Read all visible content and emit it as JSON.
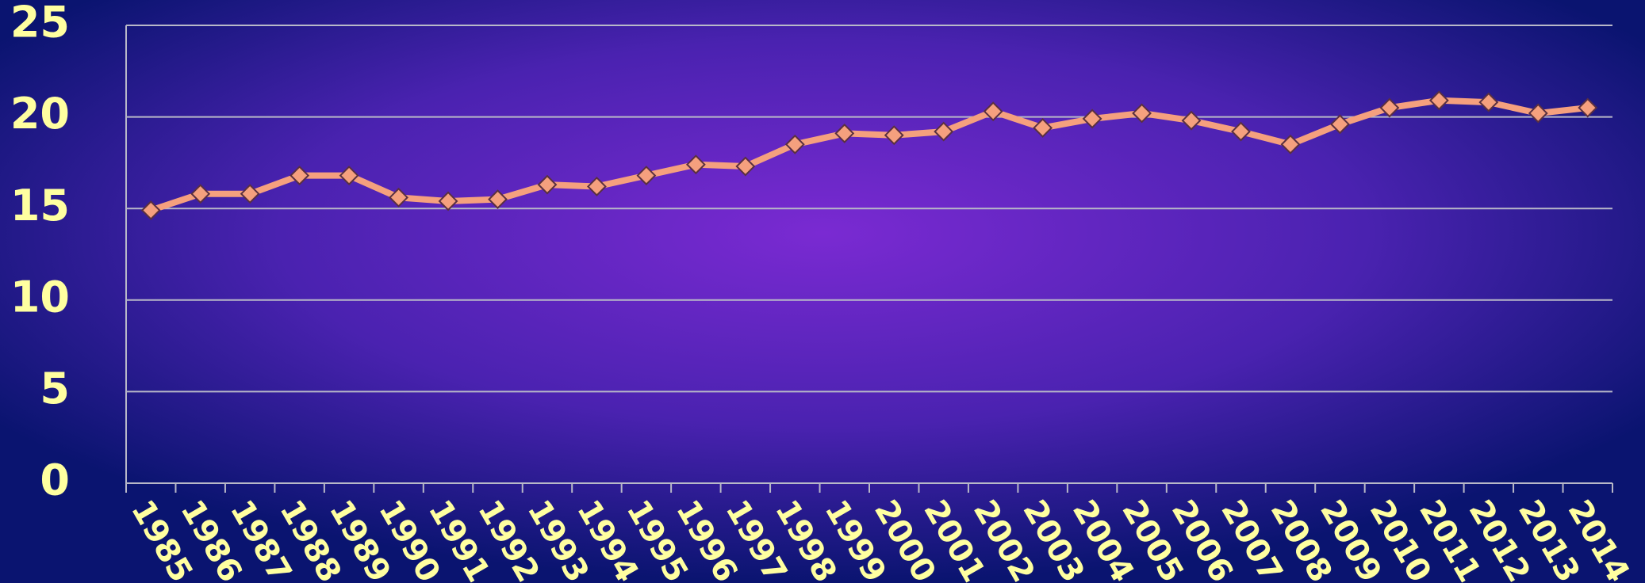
{
  "chart_data": {
    "type": "line",
    "categories": [
      "1985",
      "1986",
      "1987",
      "1988",
      "1989",
      "1990",
      "1991",
      "1992",
      "1993",
      "1994",
      "1995",
      "1996",
      "1997",
      "1998",
      "1999",
      "2000",
      "2001",
      "2002",
      "2003",
      "2004",
      "2005",
      "2006",
      "2007",
      "2008",
      "2009",
      "2010",
      "2011",
      "2012",
      "2013",
      "2014"
    ],
    "series": [
      {
        "color": "#f5a07e",
        "values": [
          14.9,
          15.8,
          15.8,
          16.8,
          16.8,
          15.6,
          15.4,
          15.5,
          16.3,
          16.2,
          16.8,
          17.4,
          17.3,
          18.5,
          19.1,
          19.0,
          19.2,
          20.3,
          19.4,
          19.9,
          20.2,
          19.8,
          19.2,
          18.5,
          19.6,
          20.5,
          20.9,
          20.8,
          20.2,
          20.5
        ]
      }
    ],
    "ylim": [
      0,
      25
    ],
    "yticks": [
      0,
      5,
      10,
      15,
      20,
      25
    ],
    "grid": true
  }
}
